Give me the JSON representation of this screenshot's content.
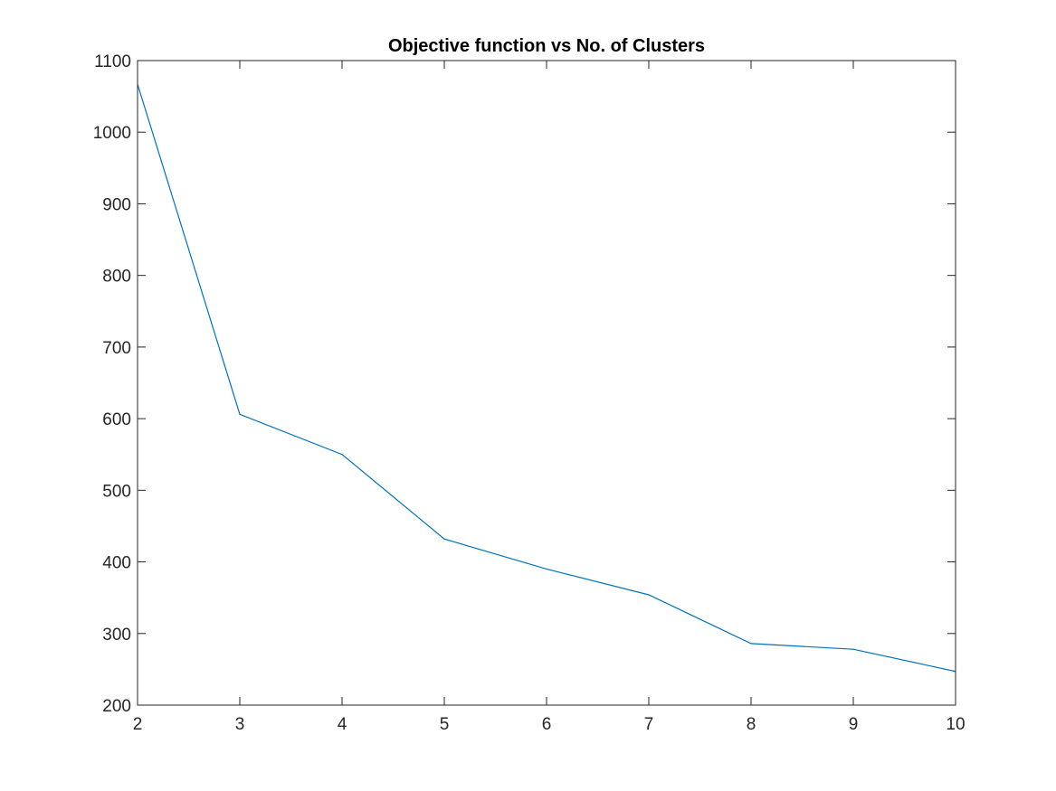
{
  "chart_data": {
    "type": "line",
    "title": "Objective function vs No. of Clusters",
    "xlabel": "",
    "ylabel": "",
    "x": [
      2,
      3,
      4,
      5,
      6,
      7,
      8,
      9,
      10
    ],
    "series": [
      {
        "values": [
          1067,
          606,
          550,
          432,
          390,
          354,
          286,
          278,
          247
        ],
        "color": "#0072BD"
      }
    ],
    "xlim": [
      2,
      10
    ],
    "ylim": [
      200,
      1100
    ],
    "xticks": [
      "2",
      "3",
      "4",
      "5",
      "6",
      "7",
      "8",
      "9",
      "10"
    ],
    "yticks": [
      "200",
      "300",
      "400",
      "500",
      "600",
      "700",
      "800",
      "900",
      "1000",
      "1100"
    ],
    "grid": false,
    "legend": "none"
  }
}
